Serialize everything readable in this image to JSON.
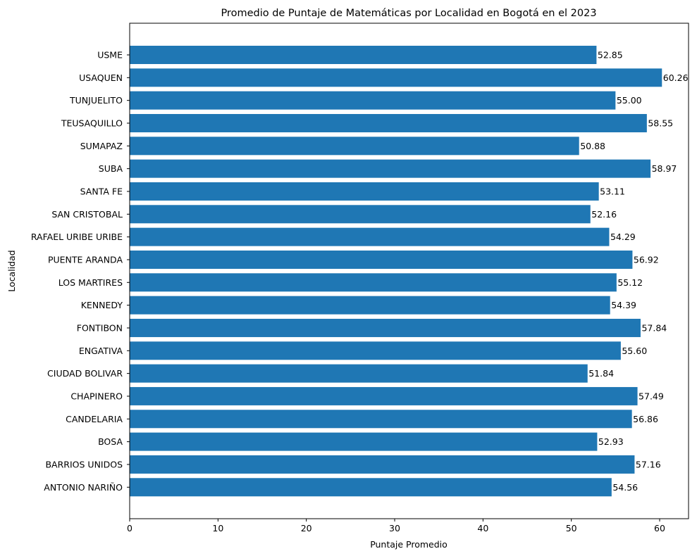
{
  "chart_data": {
    "type": "bar",
    "orientation": "horizontal",
    "title": "Promedio de Puntaje de Matemáticas por Localidad en Bogotá en el 2023",
    "xlabel": "Puntaje Promedio",
    "ylabel": "Localidad",
    "xlim": [
      0,
      63.27
    ],
    "xticks": [
      "0",
      "10",
      "20",
      "30",
      "40",
      "50",
      "60"
    ],
    "grid": false,
    "bar_color": "#1f77b4",
    "categories": [
      "USME",
      "USAQUEN",
      "TUNJUELITO",
      "TEUSAQUILLO",
      "SUMAPAZ",
      "SUBA",
      "SANTA FE",
      "SAN CRISTOBAL",
      "RAFAEL URIBE URIBE",
      "PUENTE ARANDA",
      "LOS MARTIRES",
      "KENNEDY",
      "FONTIBON",
      "ENGATIVA",
      "CIUDAD BOLIVAR",
      "CHAPINERO",
      "CANDELARIA",
      "BOSA",
      "BARRIOS UNIDOS",
      "ANTONIO NARIÑO"
    ],
    "values": [
      52.85,
      60.26,
      55.0,
      58.55,
      50.88,
      58.97,
      53.11,
      52.16,
      54.29,
      56.92,
      55.12,
      54.39,
      57.84,
      55.6,
      51.84,
      57.49,
      56.86,
      52.93,
      57.16,
      54.56
    ],
    "value_labels": [
      "52.85",
      "60.26",
      "55.00",
      "58.55",
      "50.88",
      "58.97",
      "53.11",
      "52.16",
      "54.29",
      "56.92",
      "55.12",
      "54.39",
      "57.84",
      "55.60",
      "51.84",
      "57.49",
      "56.86",
      "52.93",
      "57.16",
      "54.56"
    ]
  }
}
